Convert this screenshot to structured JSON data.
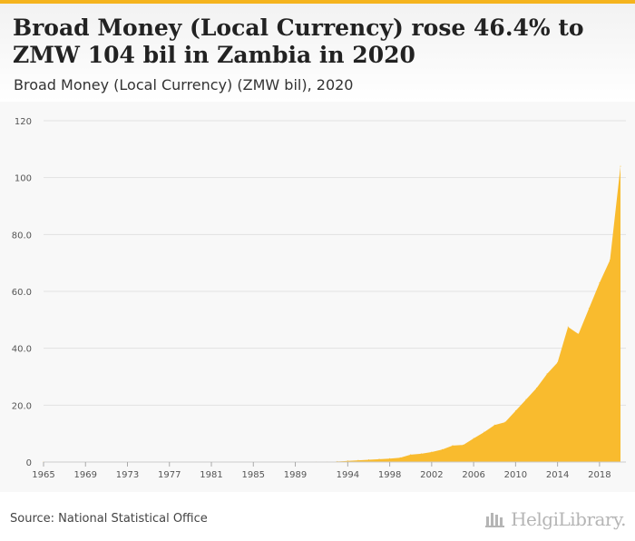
{
  "title": "Broad Money (Local Currency) rose 46.4% to ZMW 104 bil in Zambia in 2020",
  "subtitle": "Broad Money (Local Currency) (ZMW bil), 2020",
  "source": "Source: National Statistical Office",
  "brand": "HelgiLibrary.",
  "colors": {
    "accent": "#f5b41e",
    "area": "#f9bb2e",
    "grid": "#e2e2e2"
  },
  "chart_data": {
    "type": "area",
    "title": "Broad Money (Local Currency) rose 46.4% to ZMW 104 bil in Zambia in 2020",
    "ylabel": "",
    "xlabel": "",
    "ylim": [
      0,
      120
    ],
    "xlim": [
      1965,
      2020
    ],
    "yticks": [
      0,
      20,
      40,
      60,
      80,
      100,
      120
    ],
    "ytick_labels": [
      "0",
      "20.0",
      "40.0",
      "60.0",
      "80.0",
      "100",
      "120"
    ],
    "xtick_labels": [
      "1965",
      "1969",
      "1973",
      "1977",
      "1981",
      "1985",
      "1989",
      "1994",
      "1998",
      "2002",
      "2006",
      "2010",
      "2014",
      "2018"
    ],
    "grid": true,
    "legend": "none",
    "x": [
      1965,
      1966,
      1967,
      1968,
      1969,
      1970,
      1971,
      1972,
      1973,
      1974,
      1975,
      1976,
      1977,
      1978,
      1979,
      1980,
      1981,
      1982,
      1983,
      1984,
      1985,
      1986,
      1987,
      1988,
      1989,
      1990,
      1991,
      1992,
      1993,
      1994,
      1995,
      1996,
      1997,
      1998,
      1999,
      2000,
      2001,
      2002,
      2003,
      2004,
      2005,
      2006,
      2007,
      2008,
      2009,
      2010,
      2011,
      2012,
      2013,
      2014,
      2015,
      2016,
      2017,
      2018,
      2019,
      2020
    ],
    "values": [
      0.0,
      0.0,
      0.0,
      0.0,
      0.0,
      0.0,
      0.0,
      0.0,
      0.0,
      0.0,
      0.0,
      0.0,
      0.0,
      0.0,
      0.0,
      0.0,
      0.0,
      0.0,
      0.0,
      0.0,
      0.0,
      0.0,
      0.0,
      0.0,
      0.0,
      0.01,
      0.02,
      0.05,
      0.2,
      0.4,
      0.6,
      0.8,
      1.0,
      1.2,
      1.5,
      2.6,
      2.9,
      3.5,
      4.4,
      5.8,
      6.0,
      8.3,
      10.5,
      13.0,
      14.0,
      18.0,
      22.0,
      26.0,
      31.0,
      35.0,
      47.5,
      45.0,
      54.0,
      63.0,
      71.0,
      104.0
    ]
  }
}
